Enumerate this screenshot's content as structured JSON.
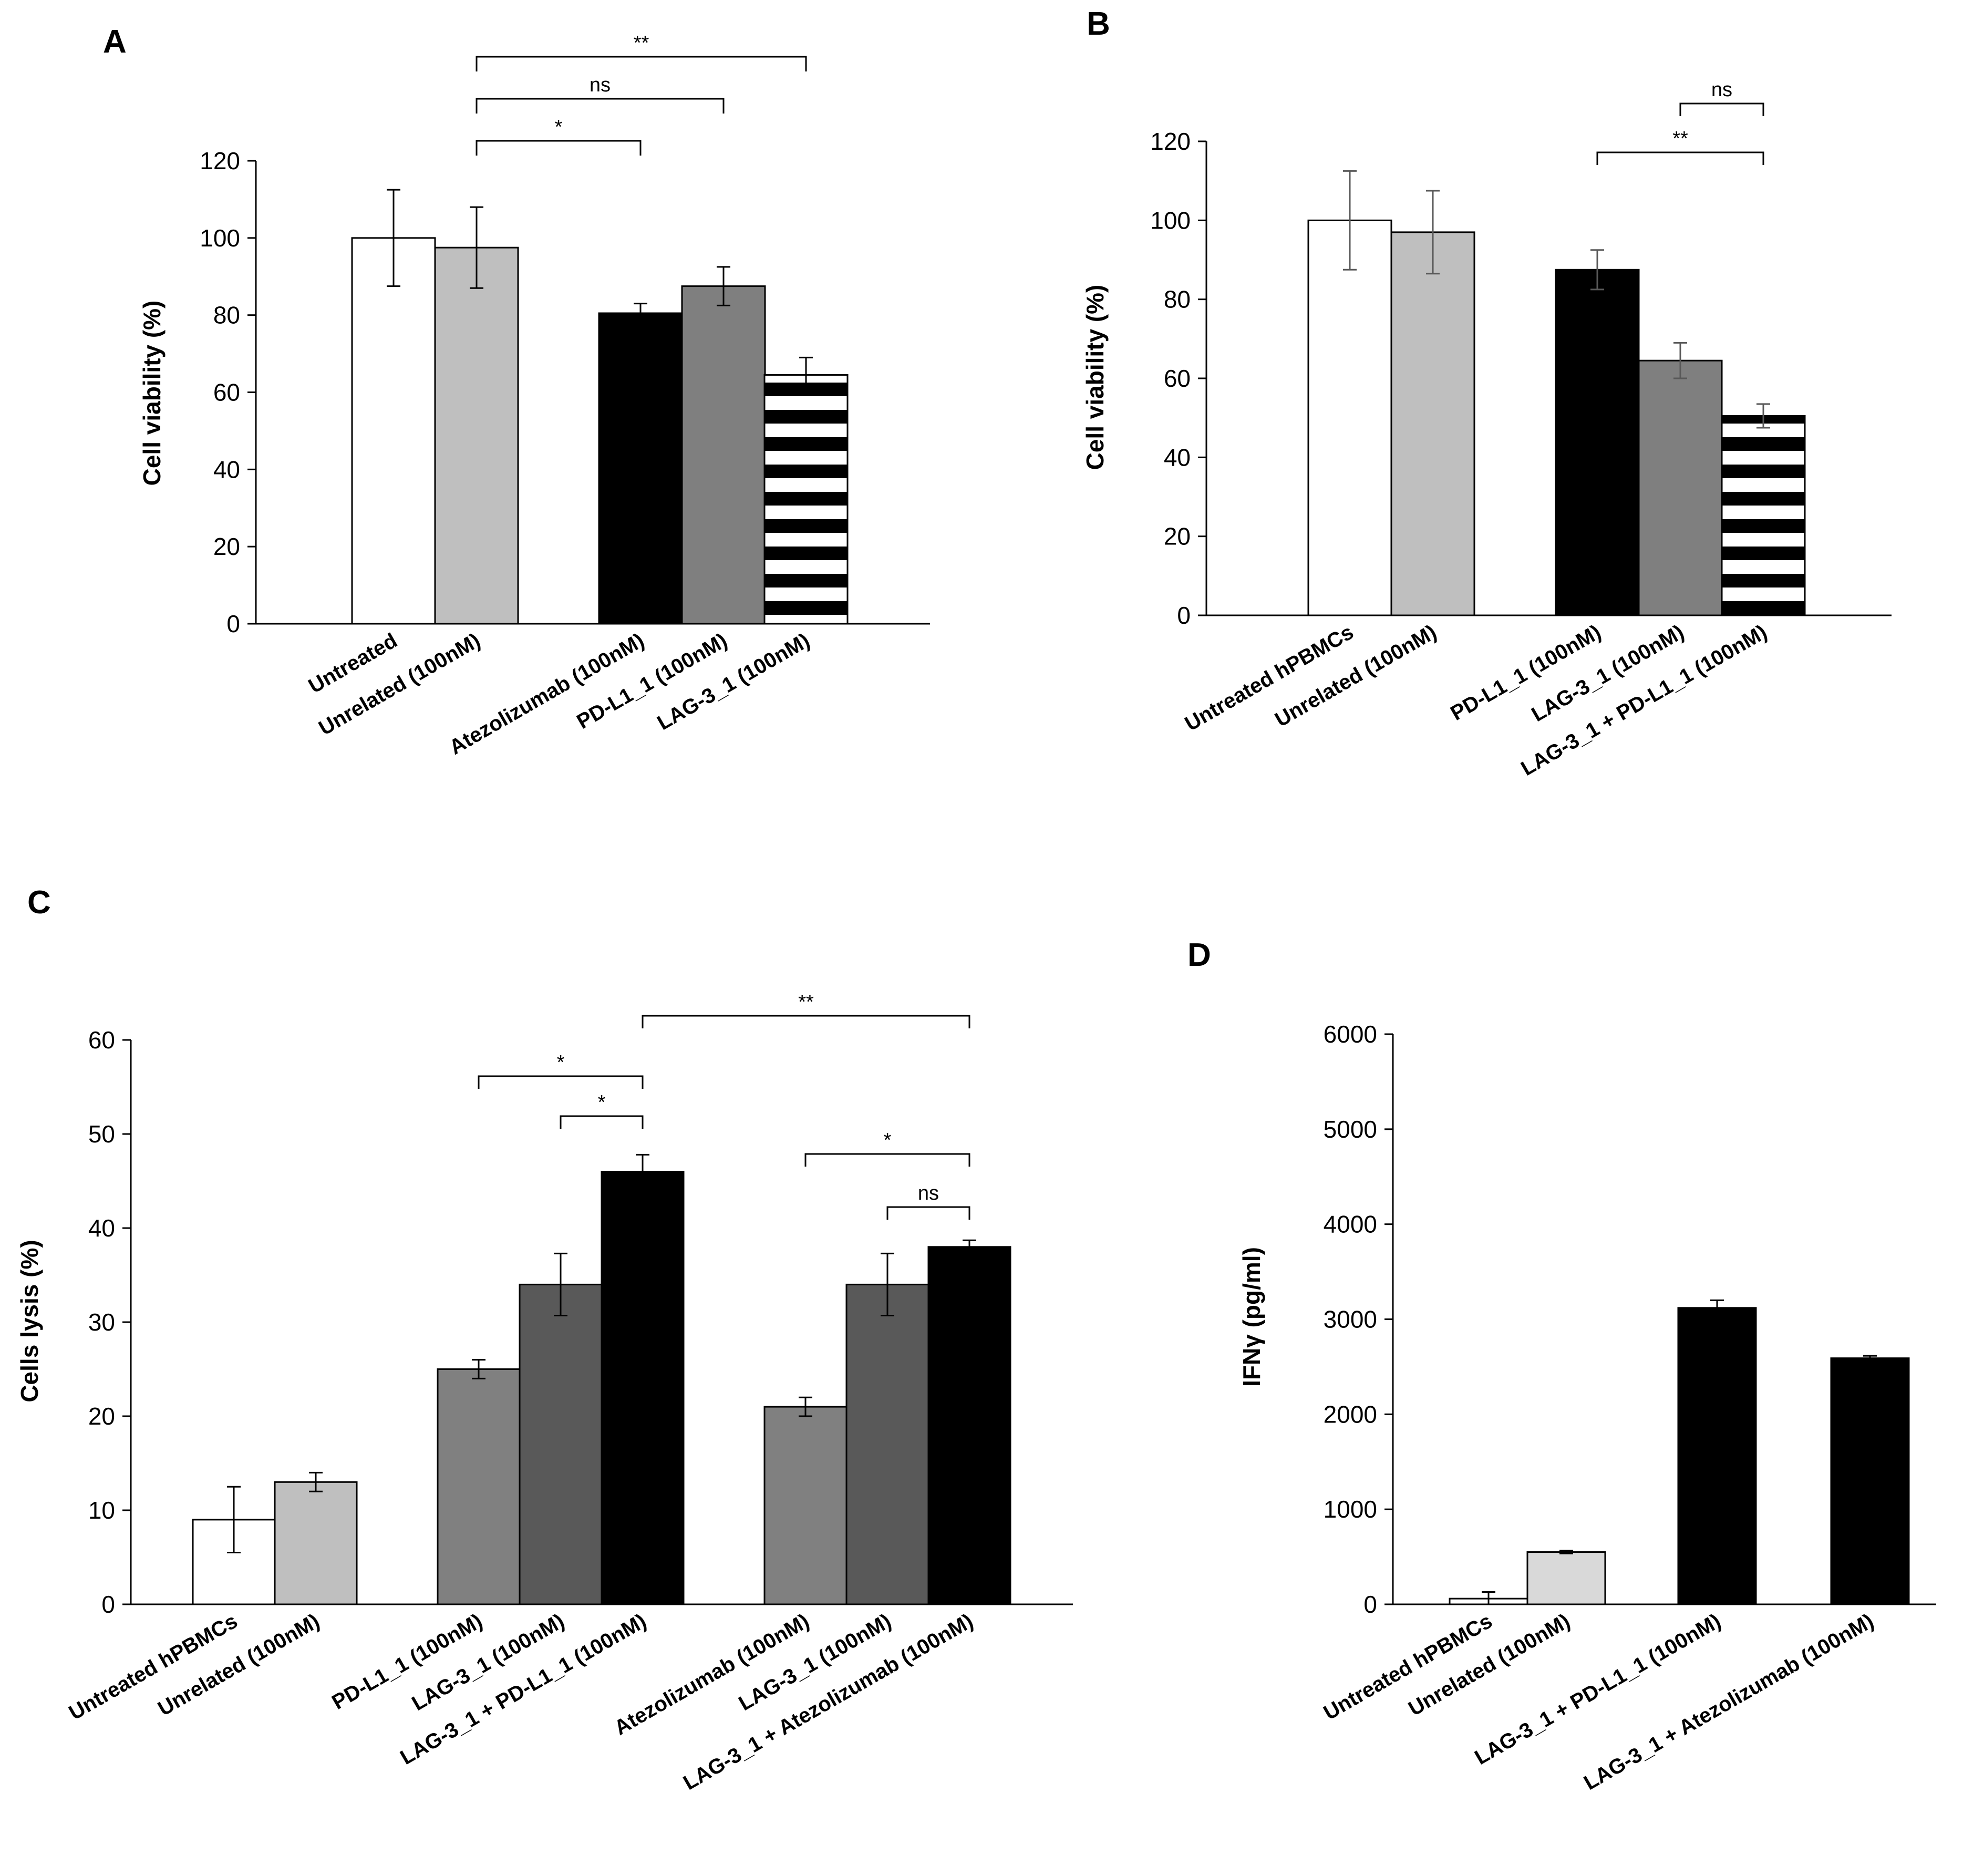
{
  "chart_data": [
    {
      "panel": "A",
      "type": "bar",
      "ylabel": "Cell viability (%)",
      "ylim": [
        0,
        120
      ],
      "yticks": [
        0,
        20,
        40,
        60,
        80,
        100,
        120
      ],
      "grid": false,
      "categories": [
        "Untreated",
        "Unrelated (100nM)",
        "Atezolizumab (100nM)",
        "PD-L1_1 (100nM)",
        "LAG-3_1 (100nM)"
      ],
      "groups": [
        2,
        3
      ],
      "values": [
        100,
        97.5,
        80.5,
        87.5,
        64.5
      ],
      "errors": [
        12.5,
        10.5,
        2.5,
        5,
        4.5
      ],
      "fills": [
        "#ffffff",
        "#bfbfbf",
        "#000000",
        "#7f7f7f",
        "stripes"
      ],
      "significance": [
        {
          "from": 1,
          "to": 2,
          "label": "*"
        },
        {
          "from": 1,
          "to": 3,
          "label": "ns"
        },
        {
          "from": 1,
          "to": 4,
          "label": "**"
        }
      ]
    },
    {
      "panel": "B",
      "type": "bar",
      "ylabel": "Cell viability (%)",
      "ylim": [
        0,
        120
      ],
      "yticks": [
        0,
        20,
        40,
        60,
        80,
        100,
        120
      ],
      "grid": false,
      "categories": [
        "Untreated hPBMCs",
        "Unrelated (100nM)",
        "PD-L1_1 (100nM)",
        "LAG-3_1 (100nM)",
        "LAG-3_1 + PD-L1_1 (100nM)"
      ],
      "groups": [
        2,
        3
      ],
      "values": [
        100,
        97,
        87.5,
        64.5,
        50.5
      ],
      "errors": [
        12.5,
        10.5,
        5,
        4.5,
        3
      ],
      "fills": [
        "#ffffff",
        "#bfbfbf",
        "#000000",
        "#7f7f7f",
        "stripes"
      ],
      "significance": [
        {
          "from": 3,
          "to": 4,
          "label": "ns"
        },
        {
          "from": 2,
          "to": 4,
          "label": "**"
        }
      ]
    },
    {
      "panel": "C",
      "type": "bar",
      "ylabel": "Cells lysis (%)",
      "ylim": [
        0,
        60
      ],
      "yticks": [
        0,
        10,
        20,
        30,
        40,
        50,
        60
      ],
      "grid": false,
      "categories": [
        "Untreated hPBMCs",
        "Unrelated (100nM)",
        "PD-L1_1 (100nM)",
        "LAG-3_1 (100nM)",
        "LAG-3_1 + PD-L1_1 (100nM)",
        "Atezolizumab (100nM)",
        "LAG-3_1 (100nM)",
        "LAG-3_1 + Atezolizumab (100nM)"
      ],
      "groups": [
        2,
        3,
        3
      ],
      "values": [
        9,
        13,
        25,
        34,
        46,
        21,
        34,
        38
      ],
      "errors": [
        3.5,
        1,
        1,
        3.3,
        1.8,
        1,
        3.3,
        0.7
      ],
      "fills": [
        "#ffffff",
        "#bfbfbf",
        "#808080",
        "#595959",
        "#000000",
        "#808080",
        "#595959",
        "#000000"
      ],
      "significance": [
        {
          "from": 2,
          "to": 4,
          "label": "*"
        },
        {
          "from": 3,
          "to": 4,
          "label": "*"
        },
        {
          "from": 4,
          "to": 7,
          "label": "**"
        },
        {
          "from": 5,
          "to": 7,
          "label": "*"
        },
        {
          "from": 6,
          "to": 7,
          "label": "ns"
        }
      ]
    },
    {
      "panel": "D",
      "type": "bar",
      "ylabel": "IFNγ (pg/ml)",
      "ylim": [
        0,
        6000
      ],
      "yticks": [
        0,
        1000,
        2000,
        3000,
        4000,
        5000,
        6000
      ],
      "grid": false,
      "categories": [
        "Untreated hPBMCs",
        "Unrelated (100nM)",
        "LAG-3_1 + PD-L1_1 (100nM)",
        "LAG-3_1 + Atezolizumab (100nM)"
      ],
      "groups": [
        2,
        1,
        1
      ],
      "values": [
        60,
        550,
        3120,
        2590
      ],
      "errors": [
        70,
        15,
        80,
        25
      ],
      "fills": [
        "#ffffff",
        "#d9d9d9",
        "#000000",
        "#000000"
      ],
      "significance": []
    }
  ]
}
